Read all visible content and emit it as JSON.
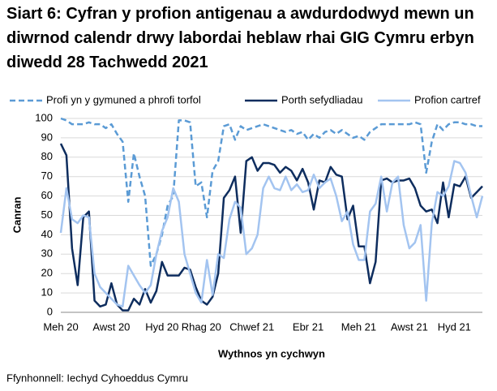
{
  "chart_data": {
    "type": "line",
    "title": "Siart 6: Cyfran y profion antigenau a awdurdodwyd mewn un diwrnod calendr drwy labordai heblaw rhai GIG Cymru erbyn diwedd 28 Tachwedd 2021",
    "y_label": "Canran",
    "x_label": "Wythnos yn cychwyn",
    "source": "Ffynhonnell: Iechyd Cyhoeddus Cymru",
    "categories": [
      "Meh 20",
      null,
      null,
      null,
      null,
      null,
      null,
      null,
      null,
      "Awst 20",
      null,
      null,
      null,
      null,
      null,
      null,
      null,
      null,
      "Hyd 20",
      null,
      null,
      null,
      null,
      null,
      null,
      "Rhag 20",
      null,
      null,
      null,
      null,
      null,
      null,
      null,
      null,
      "Chwef 21",
      null,
      null,
      null,
      null,
      null,
      null,
      null,
      null,
      null,
      "Ebr 21",
      null,
      null,
      null,
      null,
      null,
      null,
      null,
      null,
      "Meh 21",
      null,
      null,
      null,
      null,
      null,
      null,
      null,
      null,
      "Awst 21",
      null,
      null,
      null,
      null,
      null,
      null,
      null,
      "Hyd 21",
      null,
      null,
      null,
      null,
      null
    ],
    "series": [
      {
        "name": "Profi yn y gymuned a phrofi torfol",
        "color": "#5b9bd5",
        "dashed": true,
        "values": [
          100,
          99,
          97,
          97,
          97,
          98,
          97,
          97,
          95,
          97,
          92,
          88,
          57,
          82,
          70,
          60,
          24,
          30,
          40,
          55,
          60,
          99,
          99,
          98,
          65,
          67,
          49,
          73,
          78,
          96,
          97,
          89,
          96,
          94,
          95,
          96,
          97,
          96,
          95,
          94,
          93,
          94,
          92,
          93,
          89,
          92,
          90,
          93,
          94,
          92,
          94,
          92,
          90,
          91,
          89,
          93,
          95,
          97,
          97,
          97,
          97,
          97,
          97,
          98,
          97,
          72,
          88,
          97,
          94,
          97,
          98,
          98,
          97,
          97,
          96,
          96
        ]
      },
      {
        "name": "Porth sefydliadau",
        "color": "#0e2d5e",
        "dashed": false,
        "values": [
          87,
          81,
          33,
          14,
          49,
          52,
          6,
          3,
          4,
          15,
          4,
          1,
          1,
          7,
          4,
          12,
          5,
          11,
          26,
          19,
          19,
          19,
          23,
          22,
          13,
          6,
          4,
          8,
          20,
          59,
          63,
          70,
          41,
          78,
          80,
          73,
          77,
          77,
          76,
          72,
          75,
          73,
          68,
          74,
          67,
          53,
          68,
          67,
          75,
          71,
          70,
          48,
          55,
          34,
          34,
          15,
          26,
          68,
          69,
          67,
          68,
          68,
          69,
          64,
          55,
          52,
          53,
          46,
          67,
          49,
          66,
          65,
          70,
          59,
          62,
          65
        ]
      },
      {
        "name": "Profion cartref",
        "color": "#a3c4f0",
        "dashed": false,
        "values": [
          41,
          64,
          48,
          46,
          50,
          49,
          20,
          13,
          10,
          7,
          4,
          3,
          24,
          19,
          14,
          10,
          14,
          30,
          42,
          49,
          64,
          57,
          30,
          20,
          10,
          5,
          27,
          9,
          30,
          28,
          48,
          57,
          54,
          30,
          33,
          40,
          64,
          70,
          64,
          63,
          70,
          63,
          66,
          62,
          63,
          71,
          64,
          67,
          69,
          60,
          47,
          52,
          35,
          27,
          27,
          52,
          56,
          70,
          52,
          67,
          70,
          45,
          33,
          36,
          45,
          6,
          46,
          62,
          60,
          65,
          78,
          77,
          72,
          60,
          49,
          60
        ]
      }
    ],
    "ylim": [
      0,
      100
    ],
    "yticks": [
      0,
      10,
      20,
      30,
      40,
      50,
      60,
      70,
      80,
      90,
      100
    ],
    "grid": true
  }
}
